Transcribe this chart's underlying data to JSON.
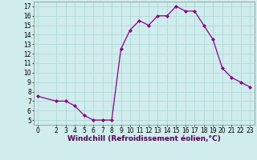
{
  "x": [
    0,
    2,
    3,
    4,
    5,
    6,
    7,
    8,
    9,
    10,
    11,
    12,
    13,
    14,
    15,
    16,
    17,
    18,
    19,
    20,
    21,
    22,
    23
  ],
  "y": [
    7.5,
    7.0,
    7.0,
    6.5,
    5.5,
    5.0,
    5.0,
    5.0,
    12.5,
    14.5,
    15.5,
    15.0,
    16.0,
    16.0,
    17.0,
    16.5,
    16.5,
    15.0,
    13.5,
    10.5,
    9.5,
    9.0,
    8.5
  ],
  "line_color": "#8b008b",
  "marker": "D",
  "marker_size": 2.0,
  "xlabel": "Windchill (Refroidissement éolien,°C)",
  "xlabel_fontsize": 6.5,
  "tick_fontsize": 5.5,
  "background_color": "#d0ecec",
  "grid_color": "#b0d8d8",
  "ylim": [
    4.5,
    17.5
  ],
  "xlim": [
    -0.5,
    23.5
  ],
  "yticks": [
    5,
    6,
    7,
    8,
    9,
    10,
    11,
    12,
    13,
    14,
    15,
    16,
    17
  ],
  "xticks": [
    0,
    2,
    3,
    4,
    5,
    6,
    7,
    8,
    9,
    10,
    11,
    12,
    13,
    14,
    15,
    16,
    17,
    18,
    19,
    20,
    21,
    22,
    23
  ]
}
